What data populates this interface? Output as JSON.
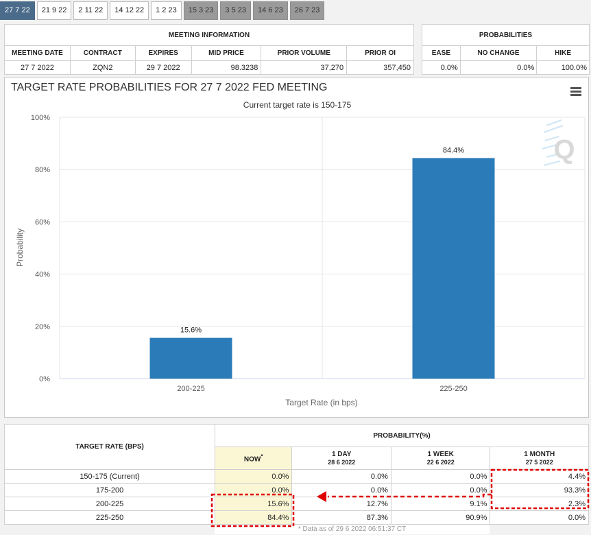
{
  "tabs": [
    {
      "label": "27 7 22",
      "state": "active"
    },
    {
      "label": "21 9 22",
      "state": "normal"
    },
    {
      "label": "2 11 22",
      "state": "normal"
    },
    {
      "label": "14 12 22",
      "state": "normal"
    },
    {
      "label": "1 2 23",
      "state": "normal"
    },
    {
      "label": "15 3 23",
      "state": "grey"
    },
    {
      "label": "3 5 23",
      "state": "grey"
    },
    {
      "label": "14 6 23",
      "state": "grey"
    },
    {
      "label": "26 7 23",
      "state": "grey"
    }
  ],
  "meeting": {
    "title": "MEETING INFORMATION",
    "headers": [
      "MEETING DATE",
      "CONTRACT",
      "EXPIRES",
      "MID PRICE",
      "PRIOR VOLUME",
      "PRIOR OI"
    ],
    "values": [
      "27 7 2022",
      "ZQN2",
      "29 7 2022",
      "98.3238",
      "37,270",
      "357,450"
    ]
  },
  "probabilities": {
    "title": "PROBABILITIES",
    "headers": [
      "EASE",
      "NO CHANGE",
      "HIKE"
    ],
    "values": [
      "0.0%",
      "0.0%",
      "100.0%"
    ]
  },
  "chart_data": {
    "type": "bar",
    "title": "TARGET RATE PROBABILITIES FOR 27 7 2022 FED MEETING",
    "subtitle": "Current target rate is 150-175",
    "xlabel": "Target Rate (in bps)",
    "ylabel": "Probability",
    "categories": [
      "200-225",
      "225-250"
    ],
    "values": [
      15.6,
      84.4
    ],
    "data_labels": [
      "15.6%",
      "84.4%"
    ],
    "ylim": [
      0,
      100
    ],
    "yticks": [
      "0%",
      "20%",
      "40%",
      "60%",
      "80%",
      "100%"
    ],
    "bar_color": "#2b7bb9",
    "grid": true,
    "legend": "none"
  },
  "rate_table": {
    "target_header": "TARGET RATE (BPS)",
    "prob_header": "PROBABILITY(%)",
    "columns": [
      {
        "label": "NOW",
        "sup": "*",
        "date": ""
      },
      {
        "label": "1 DAY",
        "sup": "",
        "date": "28 6 2022"
      },
      {
        "label": "1 WEEK",
        "sup": "",
        "date": "22 6 2022"
      },
      {
        "label": "1 MONTH",
        "sup": "",
        "date": "27 5 2022"
      }
    ],
    "rows": [
      {
        "rate": "150-175 (Current)",
        "values": [
          "0.0%",
          "0.0%",
          "0.0%",
          "4.4%"
        ]
      },
      {
        "rate": "175-200",
        "values": [
          "0.0%",
          "0.0%",
          "0.0%",
          "93.3%"
        ]
      },
      {
        "rate": "200-225",
        "values": [
          "15.6%",
          "12.7%",
          "9.1%",
          "2.3%"
        ]
      },
      {
        "rate": "225-250",
        "values": [
          "84.4%",
          "87.3%",
          "90.9%",
          "0.0%"
        ]
      }
    ],
    "footnote": "* Data as of 29 6 2022 06:51:37 CT"
  },
  "icons": {
    "menu": "hamburger-menu-icon",
    "logo": "q-watermark-logo",
    "arrow": "red-arrow-left-icon"
  },
  "colors": {
    "active_tab": "#4a6b8a",
    "grey_tab": "#9a9a9a",
    "now_highlight": "#fbf7d5",
    "annotation": "#e00000"
  }
}
